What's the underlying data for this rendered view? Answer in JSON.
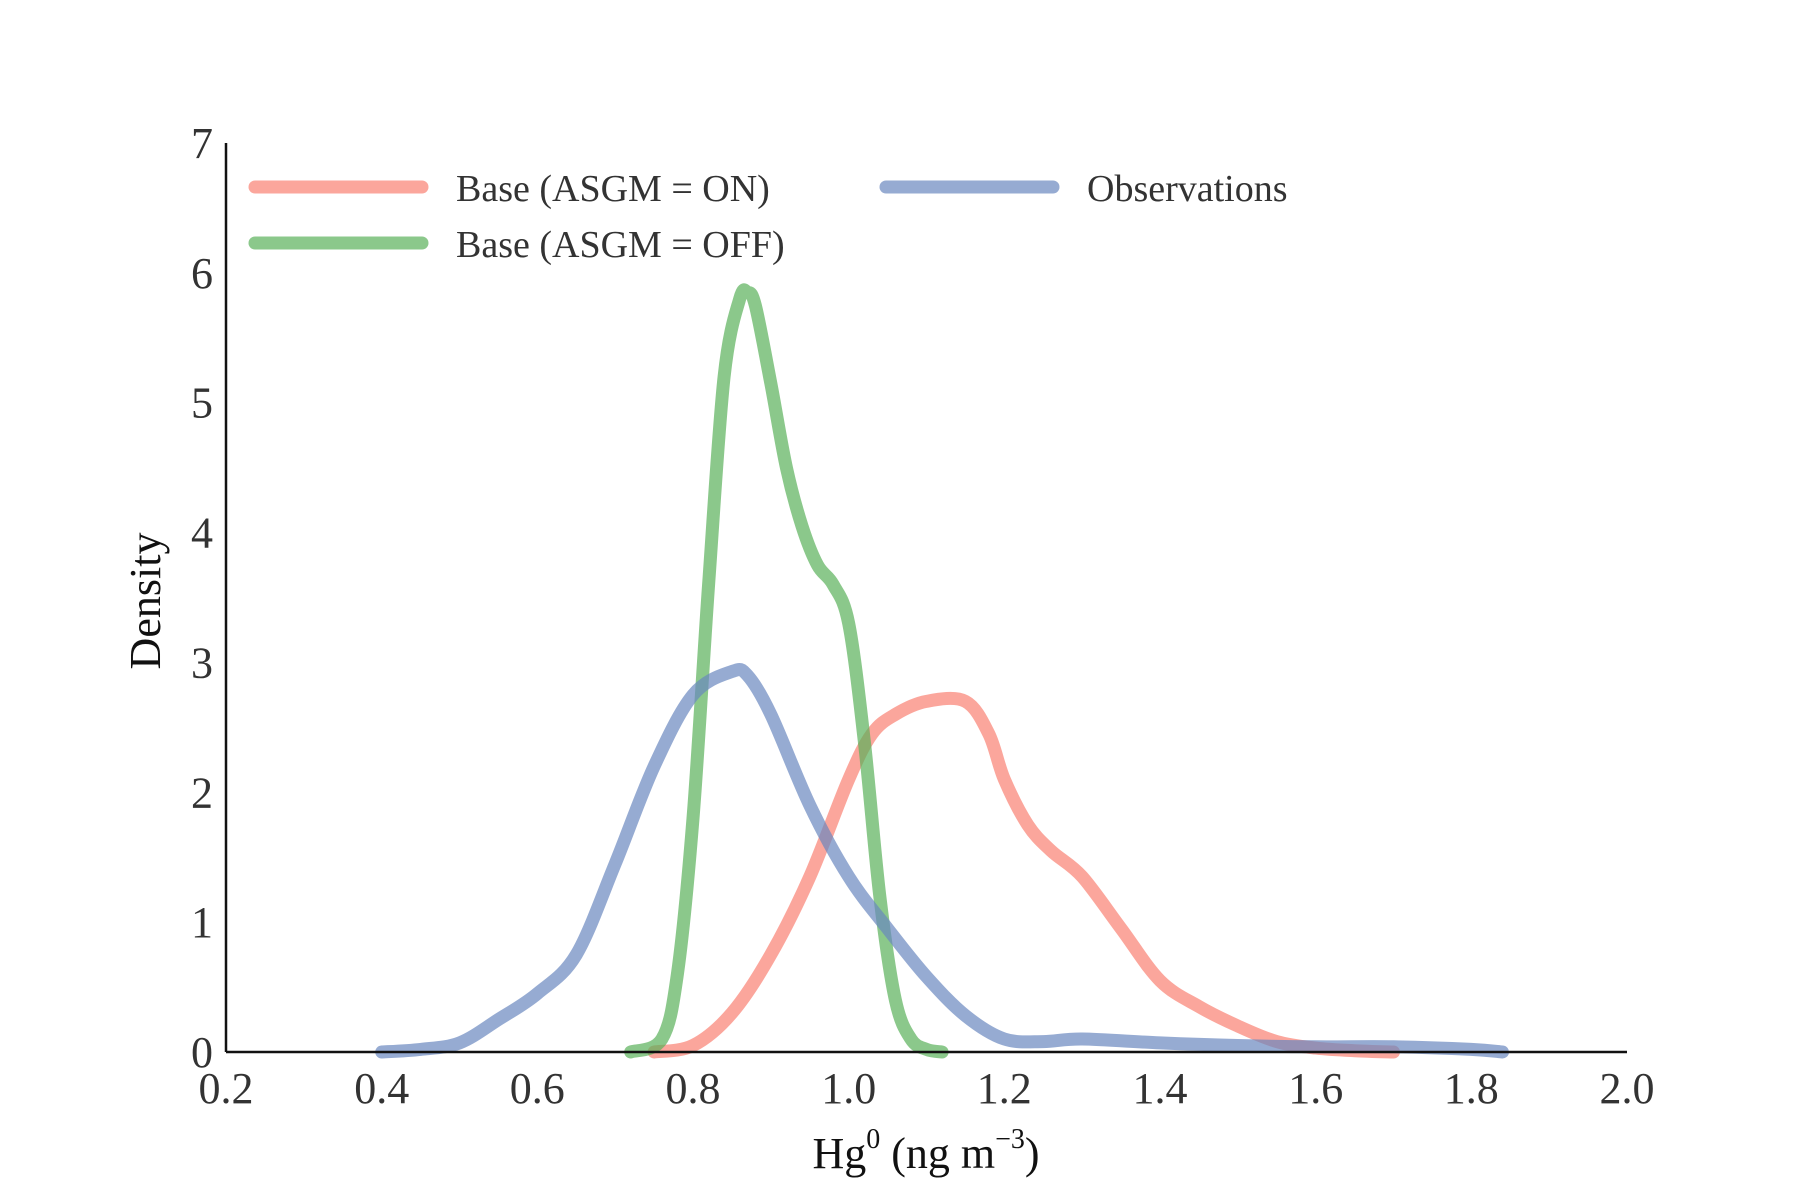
{
  "chart_data": {
    "type": "line",
    "title": "",
    "xlabel": "Hg",
    "xlabel_sup": "0",
    "xlabel_unit": " (ng m",
    "xlabel_unit_sup": "−3",
    "xlabel_close": ")",
    "ylabel": "Density",
    "xlim": [
      0.2,
      2.0
    ],
    "ylim": [
      0,
      7
    ],
    "grid": false,
    "legend_position": "top-left",
    "x_ticks": [
      "0.2",
      "0.4",
      "0.6",
      "0.8",
      "1.0",
      "1.2",
      "1.4",
      "1.6",
      "1.8",
      "2.0"
    ],
    "y_ticks": [
      "0",
      "1",
      "2",
      "3",
      "4",
      "5",
      "6",
      "7"
    ],
    "series": [
      {
        "name": "Base (ASGM = ON)",
        "color": "#FA8072",
        "x": [
          0.75,
          0.8,
          0.85,
          0.9,
          0.95,
          1.0,
          1.03,
          1.06,
          1.1,
          1.15,
          1.18,
          1.2,
          1.23,
          1.26,
          1.3,
          1.35,
          1.4,
          1.45,
          1.5,
          1.55,
          1.6,
          1.65,
          1.7
        ],
        "y": [
          0.0,
          0.05,
          0.3,
          0.75,
          1.35,
          2.1,
          2.45,
          2.6,
          2.7,
          2.7,
          2.45,
          2.1,
          1.75,
          1.55,
          1.35,
          0.95,
          0.55,
          0.35,
          0.2,
          0.08,
          0.03,
          0.01,
          0.0
        ]
      },
      {
        "name": "Base (ASGM = OFF)",
        "color": "#5AB05A",
        "x": [
          0.72,
          0.76,
          0.78,
          0.8,
          0.82,
          0.84,
          0.86,
          0.87,
          0.88,
          0.9,
          0.92,
          0.94,
          0.96,
          0.98,
          1.0,
          1.02,
          1.04,
          1.06,
          1.08,
          1.1,
          1.12
        ],
        "y": [
          0.0,
          0.1,
          0.6,
          1.8,
          3.6,
          5.2,
          5.8,
          5.85,
          5.75,
          5.15,
          4.5,
          4.05,
          3.75,
          3.6,
          3.3,
          2.4,
          1.2,
          0.4,
          0.1,
          0.02,
          0.0
        ]
      },
      {
        "name": "Observations",
        "color": "#6A88BF",
        "x": [
          0.4,
          0.45,
          0.5,
          0.55,
          0.6,
          0.65,
          0.7,
          0.75,
          0.8,
          0.85,
          0.87,
          0.9,
          0.95,
          1.0,
          1.05,
          1.1,
          1.15,
          1.2,
          1.25,
          1.3,
          1.4,
          1.5,
          1.6,
          1.7,
          1.8,
          1.84
        ],
        "y": [
          0.0,
          0.02,
          0.07,
          0.25,
          0.45,
          0.75,
          1.45,
          2.2,
          2.75,
          2.93,
          2.9,
          2.6,
          1.9,
          1.35,
          0.95,
          0.58,
          0.28,
          0.1,
          0.08,
          0.1,
          0.07,
          0.05,
          0.04,
          0.04,
          0.02,
          0.0
        ]
      }
    ]
  }
}
